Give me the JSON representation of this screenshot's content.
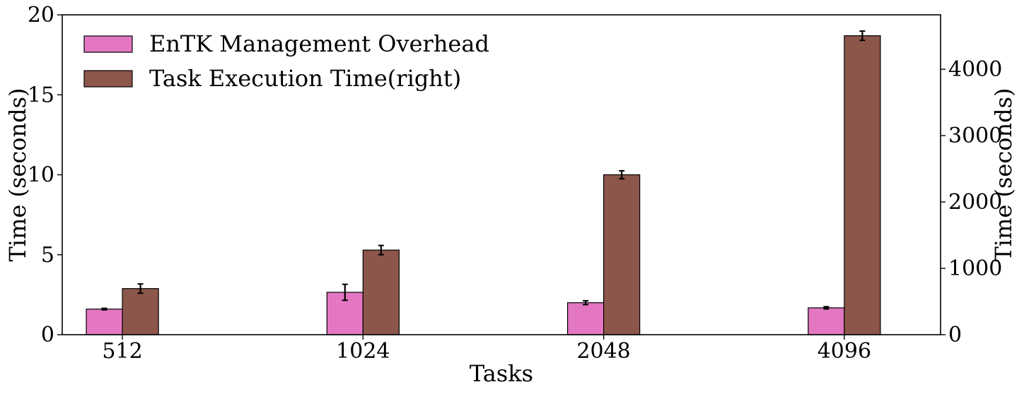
{
  "chart_data": {
    "type": "bar",
    "categories": [
      "512",
      "1024",
      "2048",
      "4096"
    ],
    "series": [
      {
        "name": "EnTK Management Overhead",
        "axis": "left",
        "color": "#e377c2",
        "values": [
          1.6,
          2.65,
          2.0,
          1.68
        ],
        "errors": [
          0.05,
          0.5,
          0.12,
          0.07
        ]
      },
      {
        "name": "Task Execution Time(right)",
        "axis": "right",
        "color": "#8c564b",
        "values": [
          695,
          1275,
          2410,
          4505
        ],
        "errors": [
          70,
          70,
          60,
          70
        ]
      }
    ],
    "xlabel": "Tasks",
    "ylabel": "Time (seconds)",
    "ylabel_right": "Time (seconds)",
    "ylim": [
      0,
      20
    ],
    "ylim_right": [
      0,
      4820
    ],
    "yticks": [
      0,
      5,
      10,
      15,
      20
    ],
    "yticks_right": [
      0,
      1000,
      2000,
      3000,
      4000
    ],
    "grid": false,
    "legend_position": "top-left"
  }
}
